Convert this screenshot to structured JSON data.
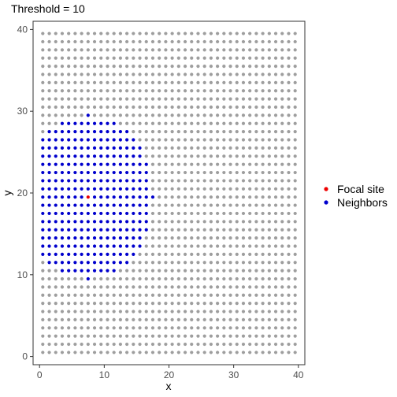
{
  "chart_data": {
    "type": "scatter",
    "title": "Threshold = 10",
    "xlabel": "x",
    "ylabel": "y",
    "xlim": [
      -1,
      41
    ],
    "ylim": [
      -1,
      41
    ],
    "x_ticks": [
      0,
      10,
      20,
      30,
      40
    ],
    "y_ticks": [
      0,
      10,
      20,
      30,
      40
    ],
    "grid": false,
    "legend_position": "right",
    "grid_points": {
      "x_from": 0.5,
      "x_to": 39.5,
      "y_from": 0.5,
      "y_to": 39.5,
      "step": 1
    },
    "focal_site": {
      "x": 7.5,
      "y": 19.5
    },
    "threshold": 10,
    "series": [
      {
        "name": "Focal site",
        "color": "#ee0000"
      },
      {
        "name": "Neighbors",
        "color": "#0000cd"
      }
    ],
    "background_point_color": "#9e9e9e"
  }
}
